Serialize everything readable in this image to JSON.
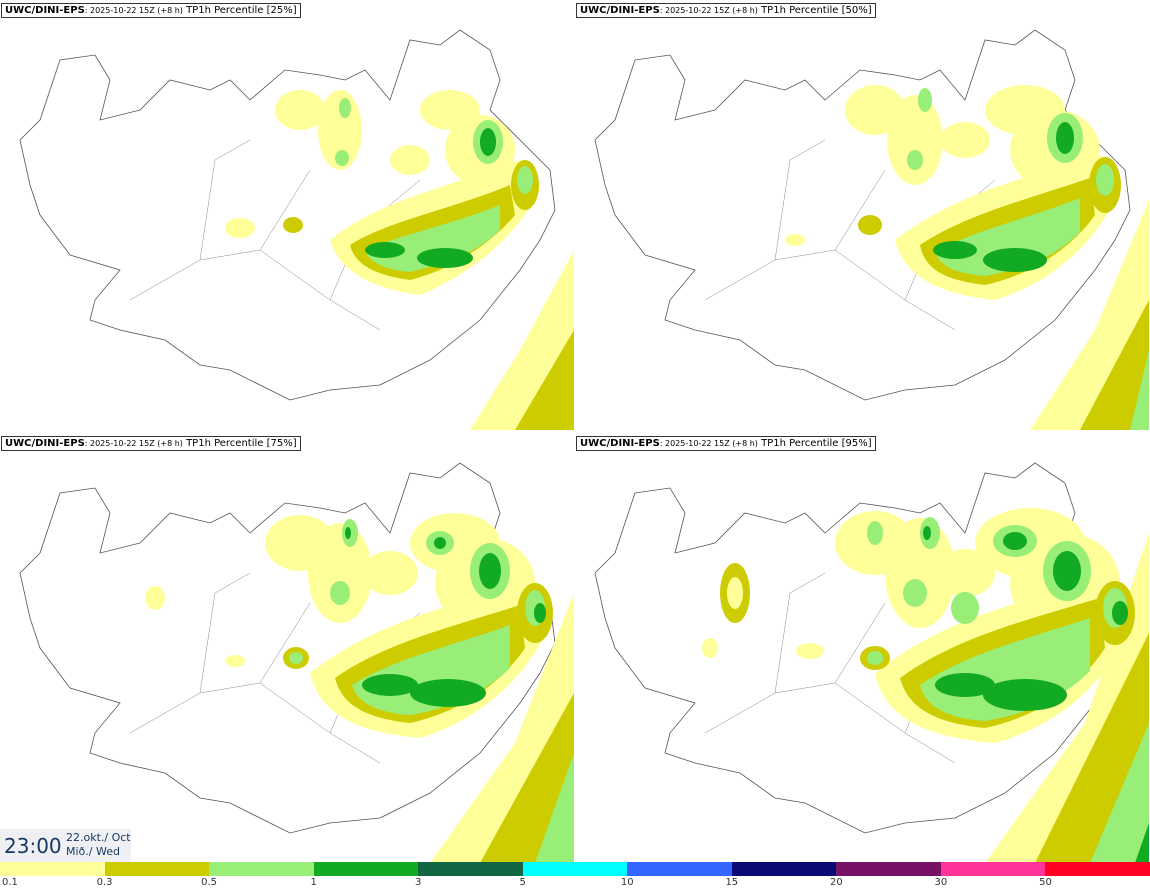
{
  "panels": [
    {
      "model": "UWC/DINI-EPS",
      "meta": ": 2025-10-22 15Z (+8 h)",
      "title": " TP1h Percentile [25%]"
    },
    {
      "model": "UWC/DINI-EPS",
      "meta": ": 2025-10-22 15Z (+8 h)",
      "title": " TP1h Percentile [50%]"
    },
    {
      "model": "UWC/DINI-EPS",
      "meta": ": 2025-10-22 15Z (+8 h)",
      "title": " TP1h Percentile [75%]"
    },
    {
      "model": "UWC/DINI-EPS",
      "meta": ": 2025-10-22 15Z (+8 h)",
      "title": " TP1h Percentile [95%]"
    }
  ],
  "valid_time": {
    "time": "23:00",
    "date_line1": "22.okt./ Oct",
    "date_line2": "Mið./ Wed"
  },
  "legend": {
    "colors": [
      "#ffff99",
      "#cccc00",
      "#99ee77",
      "#11aa22",
      "#116644",
      "#00ffff",
      "#3366ff",
      "#0a0a77",
      "#771166",
      "#ff3399",
      "#ff0022"
    ],
    "labels": [
      "0.1",
      "0.3",
      "0.5",
      "1",
      "3",
      "5",
      "10",
      "15",
      "20",
      "30",
      "50"
    ]
  }
}
